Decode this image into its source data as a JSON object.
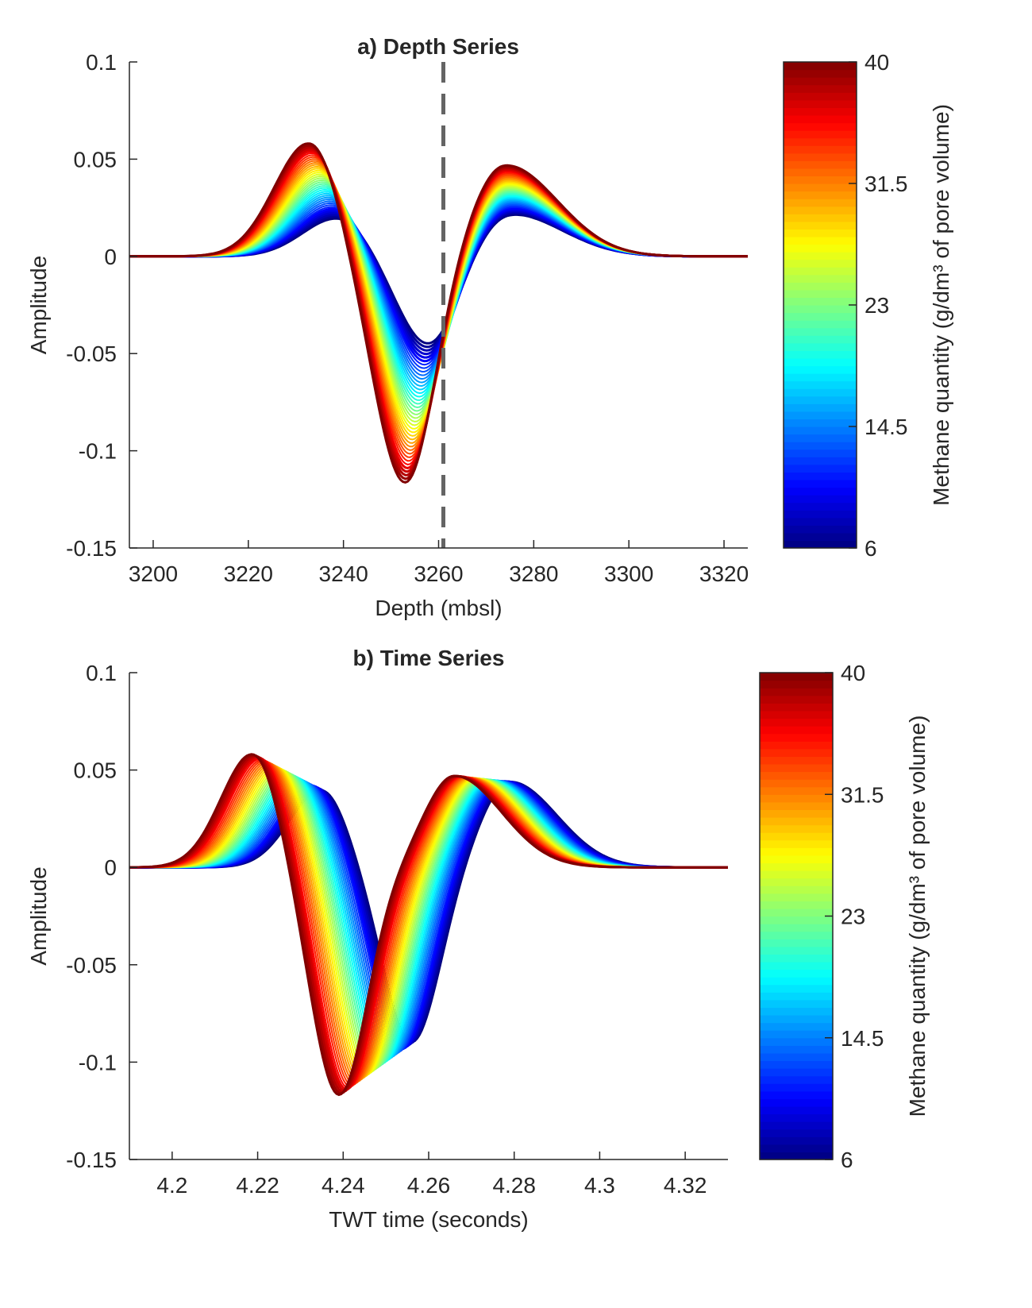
{
  "chart_data": [
    {
      "type": "line",
      "title": "a) Depth Series",
      "xlabel": "Depth (mbsl)",
      "ylabel": "Amplitude",
      "xlim": [
        3195,
        3325
      ],
      "ylim": [
        -0.15,
        0.1
      ],
      "xticks": [
        "3200",
        "3220",
        "3240",
        "3260",
        "3280",
        "3300",
        "3320"
      ],
      "yticks": [
        "0.1",
        "0.05",
        "0",
        "-0.05",
        "-0.1",
        "-0.15"
      ],
      "reference_line": {
        "x": 3261,
        "style": "dashed",
        "color": "#646464"
      },
      "colorbar": {
        "label": "Methane quantity (g/dm³ of pore volume)",
        "range": [
          6,
          40
        ],
        "ticks": [
          "40",
          "31.5",
          "23",
          "14.5",
          "6"
        ],
        "colormap": "jet"
      },
      "series_summary": {
        "methane_from": 6,
        "methane_to": 40,
        "lowest_methane": {
          "first_peak": [
            3239,
            0.02
          ],
          "trough": [
            3258,
            -0.046
          ],
          "second_peak": [
            3275,
            0.022
          ]
        },
        "highest_methane": {
          "first_peak": [
            3233,
            0.059
          ],
          "trough": [
            3253,
            -0.117
          ],
          "second_peak": [
            3274,
            0.047
          ]
        }
      }
    },
    {
      "type": "line",
      "title": "b) Time Series",
      "xlabel": "TWT time (seconds)",
      "ylabel": "Amplitude",
      "xlim": [
        4.19,
        4.33
      ],
      "ylim": [
        -0.15,
        0.1
      ],
      "xticks": [
        "4.2",
        "4.22",
        "4.24",
        "4.26",
        "4.28",
        "4.3",
        "4.32"
      ],
      "yticks": [
        "0.1",
        "0.05",
        "0",
        "-0.05",
        "-0.1",
        "-0.15"
      ],
      "colorbar": {
        "label": "Methane quantity (g/dm³ of pore volume)",
        "range": [
          6,
          40
        ],
        "ticks": [
          "40",
          "31.5",
          "23",
          "14.5",
          "6"
        ],
        "colormap": "jet"
      },
      "series_summary": {
        "methane_from": 6,
        "methane_to": 40,
        "lowest_methane": {
          "first_peak": [
            4.235,
            0.04
          ],
          "trough": [
            4.256,
            -0.09
          ],
          "second_peak": [
            4.279,
            0.044
          ]
        },
        "highest_methane": {
          "first_peak": [
            4.219,
            0.059
          ],
          "trough": [
            4.239,
            -0.117
          ],
          "second_peak": [
            4.266,
            0.047
          ]
        }
      }
    }
  ]
}
